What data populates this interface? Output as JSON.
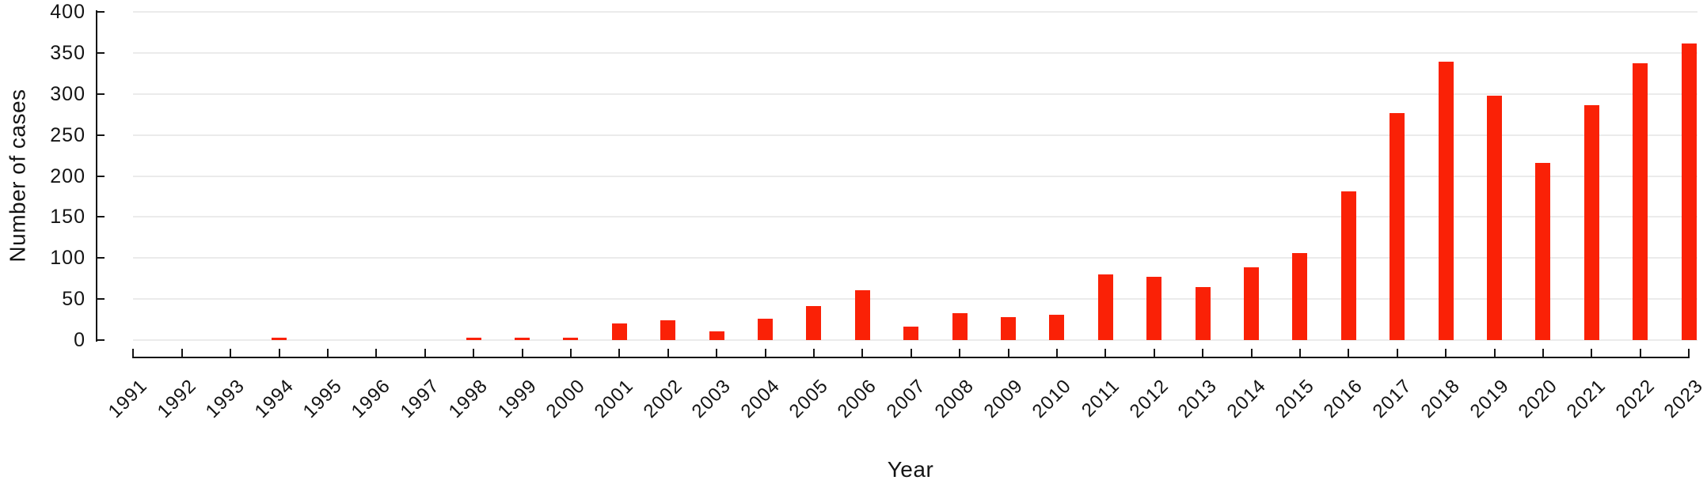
{
  "chart_data": {
    "type": "bar",
    "title": "",
    "xlabel": "Year",
    "ylabel": "Number of cases",
    "categories": [
      "1991",
      "1992",
      "1993",
      "1994",
      "1995",
      "1996",
      "1997",
      "1998",
      "1999",
      "2000",
      "2001",
      "2002",
      "2003",
      "2004",
      "2005",
      "2006",
      "2007",
      "2008",
      "2009",
      "2010",
      "2011",
      "2012",
      "2013",
      "2014",
      "2015",
      "2016",
      "2017",
      "2018",
      "2019",
      "2020",
      "2021",
      "2022",
      "2023"
    ],
    "values": [
      0,
      0,
      0,
      2,
      0,
      0,
      0,
      2,
      2,
      2,
      20,
      24,
      11,
      26,
      41,
      61,
      16,
      33,
      28,
      31,
      80,
      77,
      65,
      89,
      106,
      181,
      277,
      339,
      298,
      216,
      286,
      337,
      361
    ],
    "y_ticks": [
      0,
      50,
      100,
      150,
      200,
      250,
      300,
      350,
      400
    ],
    "ylim": [
      0,
      400
    ],
    "bar_color": "#fa2106",
    "grid": true,
    "gridline_color": "#ebebeb",
    "legend_position": "none"
  }
}
